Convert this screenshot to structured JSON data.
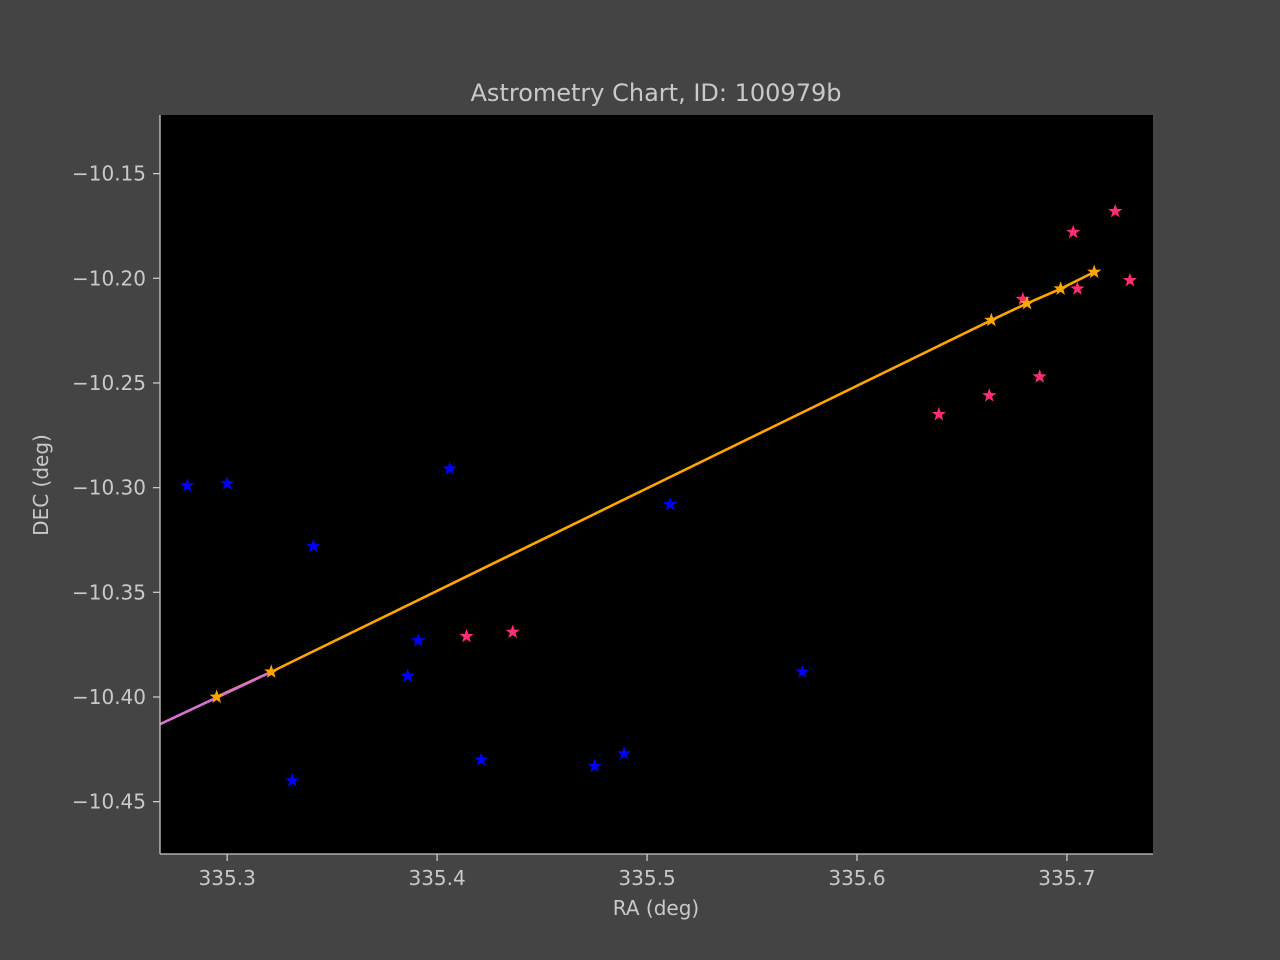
{
  "chart_data": {
    "type": "scatter",
    "title": "Astrometry Chart, ID: 100979b",
    "xlabel": "RA (deg)",
    "ylabel": "DEC (deg)",
    "xlim": [
      335.268,
      335.741
    ],
    "ylim": [
      -10.475,
      -10.122
    ],
    "xticks": [
      335.3,
      335.4,
      335.5,
      335.6,
      335.7
    ],
    "xtick_labels": [
      "335.3",
      "335.4",
      "335.5",
      "335.6",
      "335.7"
    ],
    "yticks": [
      -10.15,
      -10.2,
      -10.25,
      -10.3,
      -10.35,
      -10.4,
      -10.45
    ],
    "ytick_labels": [
      "−10.15",
      "−10.20",
      "−10.25",
      "−10.30",
      "−10.35",
      "−10.40",
      "−10.45"
    ],
    "grid": false,
    "background": "#000000",
    "series": [
      {
        "kind": "stars",
        "color": "#0000ff",
        "points": [
          [
            335.281,
            -10.299
          ],
          [
            335.3,
            -10.298
          ],
          [
            335.341,
            -10.328
          ],
          [
            335.331,
            -10.44
          ],
          [
            335.386,
            -10.39
          ],
          [
            335.391,
            -10.373
          ],
          [
            335.406,
            -10.291
          ],
          [
            335.421,
            -10.43
          ],
          [
            335.475,
            -10.433
          ],
          [
            335.489,
            -10.427
          ],
          [
            335.511,
            -10.308
          ],
          [
            335.574,
            -10.388
          ]
        ]
      },
      {
        "kind": "stars",
        "color": "#ff2d6e",
        "points": [
          [
            335.414,
            -10.371
          ],
          [
            335.436,
            -10.369
          ],
          [
            335.639,
            -10.265
          ],
          [
            335.663,
            -10.256
          ],
          [
            335.679,
            -10.21
          ],
          [
            335.687,
            -10.247
          ],
          [
            335.703,
            -10.178
          ],
          [
            335.705,
            -10.205
          ],
          [
            335.723,
            -10.168
          ],
          [
            335.73,
            -10.201
          ]
        ]
      },
      {
        "kind": "line_with_stars",
        "color": "#ffa500",
        "points": [
          [
            335.295,
            -10.4
          ],
          [
            335.321,
            -10.388
          ],
          [
            335.664,
            -10.22
          ],
          [
            335.681,
            -10.212
          ],
          [
            335.697,
            -10.205
          ],
          [
            335.713,
            -10.197
          ]
        ]
      },
      {
        "kind": "line",
        "color": "#da70d6",
        "points": [
          [
            335.268,
            -10.413
          ],
          [
            335.321,
            -10.388
          ]
        ]
      }
    ]
  }
}
